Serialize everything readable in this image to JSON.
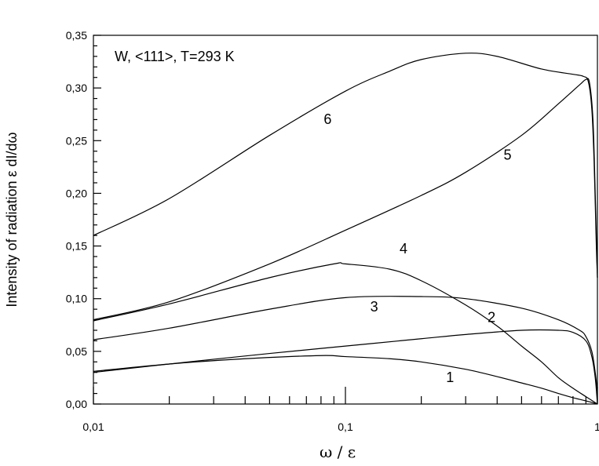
{
  "chart_data": {
    "type": "line",
    "title": "",
    "annotation": "W, <111>, T=293 K",
    "xlabel": "ω / ε",
    "ylabel": "Intensity of radiation ε dI/dω",
    "xscale": "log",
    "xlim": [
      0.01,
      1
    ],
    "ylim": [
      0,
      0.35
    ],
    "x_ticks": [
      0.01,
      0.1,
      1
    ],
    "x_tick_labels": [
      "0,01",
      "0,1",
      "1"
    ],
    "y_ticks": [
      0,
      0.05,
      0.1,
      0.15,
      0.2,
      0.25,
      0.3,
      0.35
    ],
    "y_tick_labels": [
      "0,00",
      "0,05",
      "0,10",
      "0,15",
      "0,20",
      "0,25",
      "0,30",
      "0,35"
    ],
    "grid": false,
    "series": [
      {
        "name": "1",
        "label_pos": [
          0.26,
          0.021
        ],
        "points": [
          [
            0.01,
            0.031
          ],
          [
            0.02,
            0.038
          ],
          [
            0.04,
            0.043
          ],
          [
            0.08,
            0.046
          ],
          [
            0.1,
            0.045
          ],
          [
            0.15,
            0.043
          ],
          [
            0.2,
            0.04
          ],
          [
            0.3,
            0.033
          ],
          [
            0.4,
            0.026
          ],
          [
            0.5,
            0.02
          ],
          [
            0.6,
            0.015
          ],
          [
            0.7,
            0.01
          ],
          [
            0.8,
            0.006
          ],
          [
            0.9,
            0.003
          ],
          [
            1.0,
            0.0
          ]
        ]
      },
      {
        "name": "2",
        "label_pos": [
          0.38,
          0.078
        ],
        "points": [
          [
            0.01,
            0.03
          ],
          [
            0.02,
            0.038
          ],
          [
            0.05,
            0.048
          ],
          [
            0.1,
            0.055
          ],
          [
            0.2,
            0.062
          ],
          [
            0.3,
            0.066
          ],
          [
            0.5,
            0.07
          ],
          [
            0.7,
            0.07
          ],
          [
            0.8,
            0.068
          ],
          [
            0.9,
            0.06
          ],
          [
            0.95,
            0.045
          ],
          [
            0.98,
            0.025
          ],
          [
            1.0,
            0.0
          ]
        ]
      },
      {
        "name": "3",
        "label_pos": [
          0.13,
          0.088
        ],
        "points": [
          [
            0.01,
            0.061
          ],
          [
            0.02,
            0.072
          ],
          [
            0.05,
            0.09
          ],
          [
            0.1,
            0.101
          ],
          [
            0.2,
            0.102
          ],
          [
            0.3,
            0.1
          ],
          [
            0.5,
            0.091
          ],
          [
            0.7,
            0.08
          ],
          [
            0.85,
            0.07
          ],
          [
            0.9,
            0.064
          ],
          [
            0.95,
            0.05
          ],
          [
            0.98,
            0.03
          ],
          [
            1.0,
            0.012
          ]
        ]
      },
      {
        "name": "4",
        "label_pos": [
          0.17,
          0.143
        ],
        "points": [
          [
            0.01,
            0.079
          ],
          [
            0.02,
            0.095
          ],
          [
            0.05,
            0.12
          ],
          [
            0.09,
            0.133
          ],
          [
            0.1,
            0.133
          ],
          [
            0.15,
            0.128
          ],
          [
            0.2,
            0.117
          ],
          [
            0.3,
            0.094
          ],
          [
            0.4,
            0.074
          ],
          [
            0.5,
            0.055
          ],
          [
            0.6,
            0.04
          ],
          [
            0.7,
            0.025
          ],
          [
            0.8,
            0.015
          ],
          [
            0.9,
            0.007
          ],
          [
            1.0,
            0.0
          ]
        ]
      },
      {
        "name": "5",
        "label_pos": [
          0.44,
          0.232
        ],
        "points": [
          [
            0.01,
            0.08
          ],
          [
            0.02,
            0.097
          ],
          [
            0.05,
            0.133
          ],
          [
            0.1,
            0.165
          ],
          [
            0.2,
            0.198
          ],
          [
            0.3,
            0.22
          ],
          [
            0.5,
            0.255
          ],
          [
            0.7,
            0.285
          ],
          [
            0.85,
            0.303
          ],
          [
            0.9,
            0.308
          ],
          [
            0.93,
            0.305
          ],
          [
            0.96,
            0.27
          ],
          [
            0.98,
            0.2
          ],
          [
            1.0,
            0.12
          ]
        ]
      },
      {
        "name": "6",
        "label_pos": [
          0.085,
          0.266
        ],
        "points": [
          [
            0.01,
            0.16
          ],
          [
            0.02,
            0.195
          ],
          [
            0.05,
            0.255
          ],
          [
            0.1,
            0.297
          ],
          [
            0.15,
            0.316
          ],
          [
            0.2,
            0.327
          ],
          [
            0.3,
            0.333
          ],
          [
            0.4,
            0.33
          ],
          [
            0.6,
            0.318
          ],
          [
            0.8,
            0.313
          ],
          [
            0.88,
            0.311
          ],
          [
            0.92,
            0.306
          ],
          [
            0.95,
            0.28
          ],
          [
            0.97,
            0.23
          ],
          [
            0.99,
            0.15
          ],
          [
            1.0,
            0.12
          ]
        ]
      }
    ]
  }
}
